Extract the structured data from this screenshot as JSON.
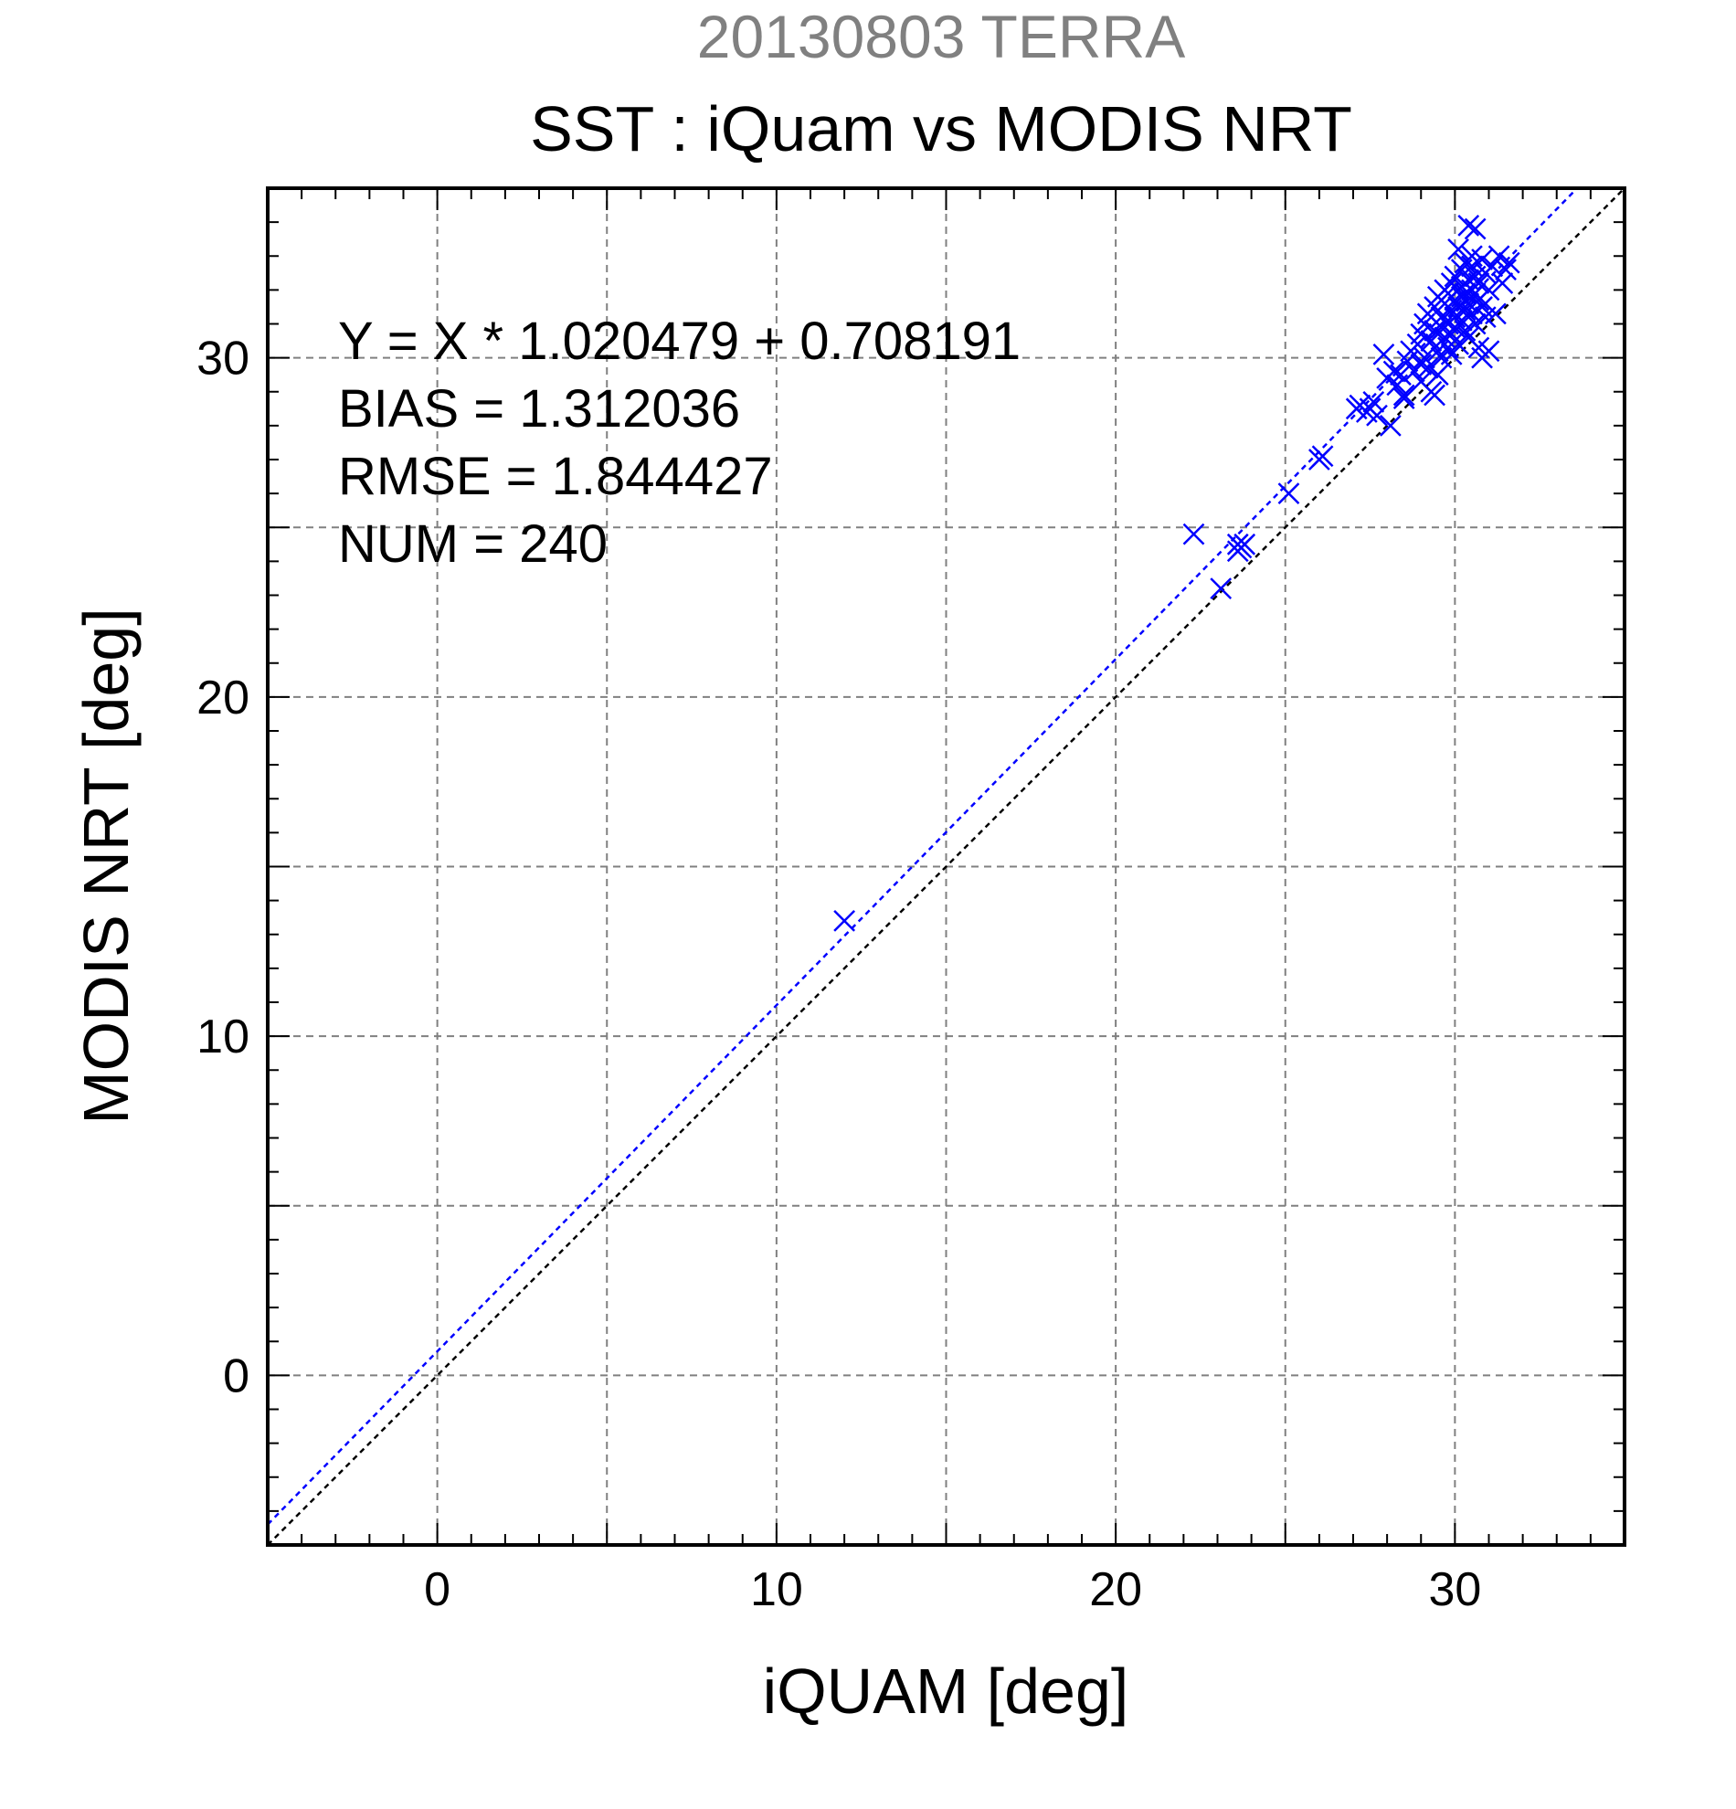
{
  "chart_data": {
    "type": "scatter",
    "supertitle": "20130803 TERRA",
    "title": "SST : iQuam vs MODIS NRT",
    "xlabel": "iQUAM [deg]",
    "ylabel": "MODIS NRT [deg]",
    "xlim": [
      -5,
      35
    ],
    "ylim": [
      -5,
      35
    ],
    "xticks": [
      0,
      10,
      20,
      30
    ],
    "yticks": [
      0,
      10,
      20,
      30
    ],
    "grid_step": 5,
    "grid": true,
    "marker": "x",
    "colors": {
      "points": "#0000ff",
      "fit_line": "#0000ff",
      "identity_line": "#000000",
      "grid": "#808080",
      "supertitle": "#808080"
    },
    "stats": {
      "equation": "Y = X * 1.020479 + 0.708191",
      "bias": "BIAS = 1.312036",
      "rmse": "RMSE = 1.844427",
      "num": "NUM = 240"
    },
    "fit": {
      "slope": 1.020479,
      "intercept": 0.708191
    },
    "points": [
      [
        12.0,
        13.4
      ],
      [
        22.3,
        24.8
      ],
      [
        23.1,
        23.2
      ],
      [
        23.6,
        24.5
      ],
      [
        23.7,
        24.4
      ],
      [
        23.8,
        24.5
      ],
      [
        23.6,
        24.3
      ],
      [
        25.1,
        26.0
      ],
      [
        26.1,
        27.1
      ],
      [
        26.0,
        27.0
      ],
      [
        27.1,
        28.5
      ],
      [
        27.2,
        28.6
      ],
      [
        27.4,
        28.4
      ],
      [
        27.5,
        28.5
      ],
      [
        27.7,
        28.3
      ],
      [
        27.6,
        28.7
      ],
      [
        27.9,
        30.1
      ],
      [
        28.0,
        29.4
      ],
      [
        28.1,
        28.0
      ],
      [
        28.2,
        29.6
      ],
      [
        28.3,
        29.2
      ],
      [
        28.4,
        29.5
      ],
      [
        28.5,
        28.8
      ],
      [
        28.6,
        29.9
      ],
      [
        28.7,
        30.2
      ],
      [
        28.8,
        29.6
      ],
      [
        28.9,
        30.4
      ],
      [
        29.0,
        30.7
      ],
      [
        29.0,
        29.3
      ],
      [
        29.1,
        31.0
      ],
      [
        29.1,
        30.0
      ],
      [
        29.2,
        29.7
      ],
      [
        29.2,
        31.3
      ],
      [
        29.3,
        30.5
      ],
      [
        29.3,
        29.0
      ],
      [
        29.4,
        30.8
      ],
      [
        29.4,
        31.5
      ],
      [
        29.5,
        30.2
      ],
      [
        29.5,
        29.5
      ],
      [
        29.5,
        31.8
      ],
      [
        29.6,
        30.9
      ],
      [
        29.6,
        31.2
      ],
      [
        29.6,
        30.0
      ],
      [
        29.7,
        31.6
      ],
      [
        29.7,
        30.6
      ],
      [
        29.7,
        32.0
      ],
      [
        29.8,
        31.0
      ],
      [
        29.8,
        30.3
      ],
      [
        29.8,
        31.9
      ],
      [
        29.9,
        31.4
      ],
      [
        29.9,
        32.2
      ],
      [
        29.9,
        30.7
      ],
      [
        30.0,
        31.7
      ],
      [
        30.0,
        30.9
      ],
      [
        30.0,
        32.4
      ],
      [
        30.0,
        31.2
      ],
      [
        30.1,
        32.0
      ],
      [
        30.1,
        31.5
      ],
      [
        30.1,
        33.2
      ],
      [
        30.1,
        30.4
      ],
      [
        30.2,
        31.8
      ],
      [
        30.2,
        32.6
      ],
      [
        30.2,
        31.1
      ],
      [
        30.2,
        32.1
      ],
      [
        30.3,
        31.4
      ],
      [
        30.3,
        32.8
      ],
      [
        30.3,
        30.8
      ],
      [
        30.3,
        31.9
      ],
      [
        30.4,
        33.9
      ],
      [
        30.4,
        32.3
      ],
      [
        30.4,
        31.6
      ],
      [
        30.4,
        30.6
      ],
      [
        30.5,
        33.0
      ],
      [
        30.5,
        32.0
      ],
      [
        30.5,
        31.3
      ],
      [
        30.5,
        32.7
      ],
      [
        30.6,
        33.8
      ],
      [
        30.6,
        31.9
      ],
      [
        30.6,
        32.4
      ],
      [
        30.6,
        31.0
      ],
      [
        30.7,
        32.2
      ],
      [
        30.7,
        31.7
      ],
      [
        30.7,
        30.3
      ],
      [
        30.8,
        32.9
      ],
      [
        30.8,
        31.5
      ],
      [
        30.8,
        30.0
      ],
      [
        30.9,
        32.5
      ],
      [
        30.9,
        31.2
      ],
      [
        31.0,
        32.0
      ],
      [
        31.0,
        30.2
      ],
      [
        31.1,
        32.7
      ],
      [
        31.2,
        31.3
      ],
      [
        31.3,
        33.0
      ],
      [
        31.4,
        32.2
      ],
      [
        31.5,
        32.6
      ],
      [
        31.6,
        32.8
      ],
      [
        28.5,
        28.9
      ],
      [
        29.0,
        29.8
      ],
      [
        29.4,
        28.9
      ],
      [
        29.9,
        30.1
      ]
    ]
  }
}
